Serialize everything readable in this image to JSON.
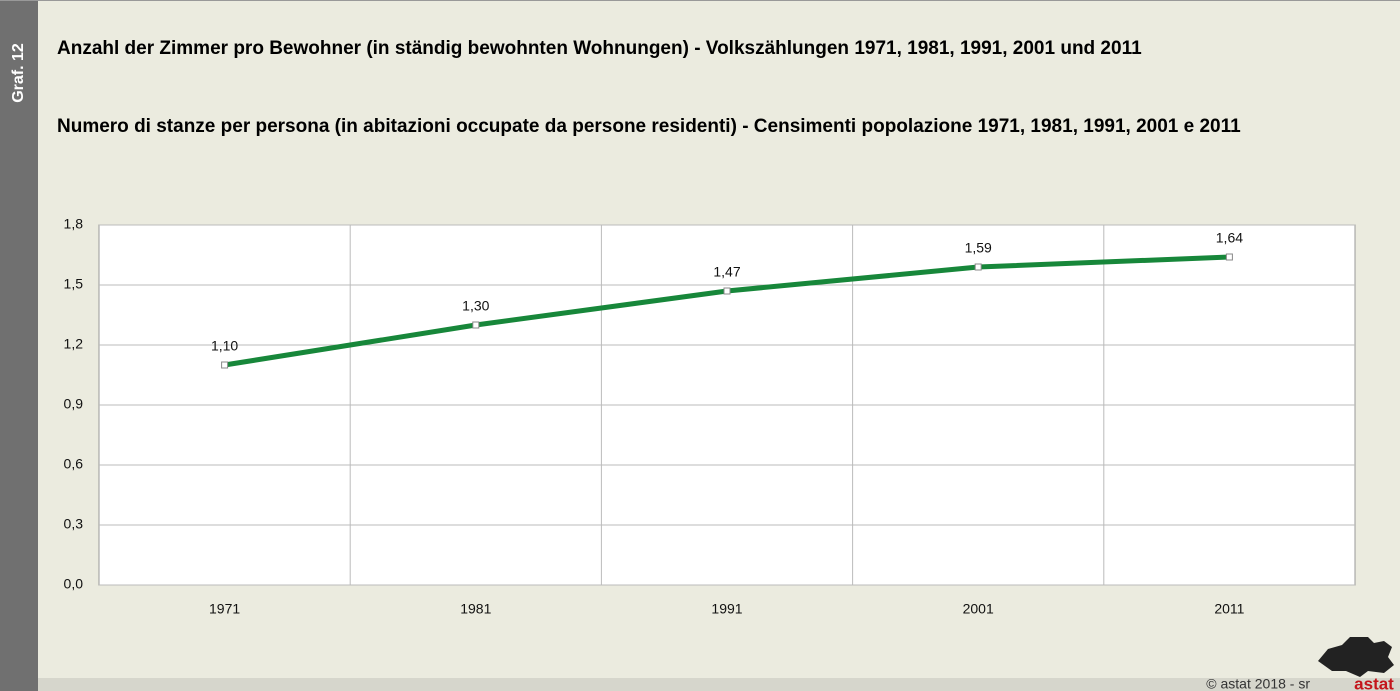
{
  "chart_data": {
    "type": "line",
    "side_label": "Graf. 12",
    "title": "Anzahl der Zimmer pro Bewohner (in ständig bewohnten Wohnungen) - Volkszählungen 1971, 1981, 1991, 2001 und 2011",
    "subtitle": "Numero di stanze per persona (in abitazioni occupate da persone residenti) - Censimenti popolazione 1971, 1981, 1991, 2001 e 2011",
    "categories": [
      "1971",
      "1981",
      "1991",
      "2001",
      "2011"
    ],
    "values": [
      1.1,
      1.3,
      1.47,
      1.59,
      1.64
    ],
    "value_labels": [
      "1,10",
      "1,30",
      "1,47",
      "1,59",
      "1,64"
    ],
    "color": "#17873a",
    "ylim": [
      0,
      1.8
    ],
    "yticks": [
      {
        "value": 0,
        "label": "0,0"
      },
      {
        "value": 0.3,
        "label": "0,3"
      },
      {
        "value": 0.6,
        "label": "0,6"
      },
      {
        "value": 0.9,
        "label": "0,9"
      },
      {
        "value": 1.2,
        "label": "1,2"
      },
      {
        "value": 1.5,
        "label": "1,5"
      },
      {
        "value": 1.8,
        "label": "1,8"
      }
    ],
    "grid": true,
    "credit": "©  astat 2018 - sr",
    "logo": "astat"
  }
}
